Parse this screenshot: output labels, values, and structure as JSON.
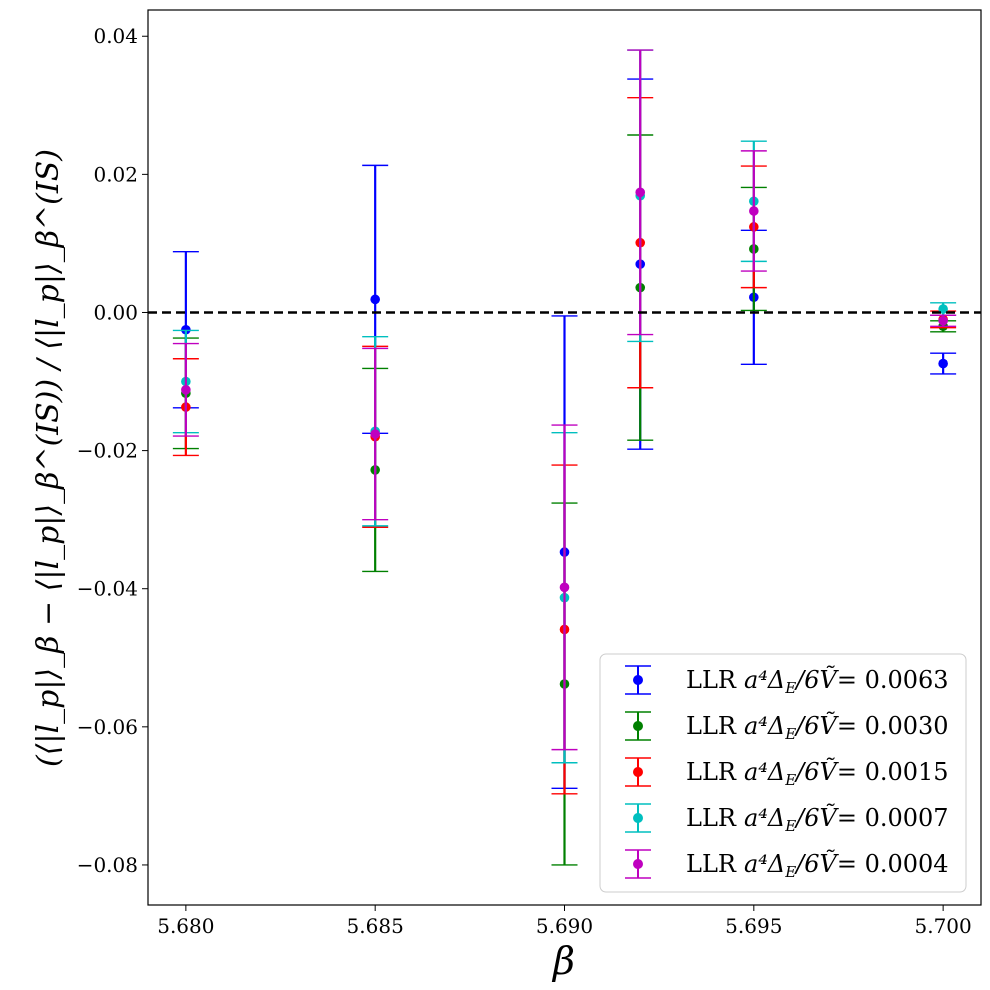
{
  "chart_data": {
    "type": "errorbar",
    "xlabel": "β",
    "ylabel": "(⟨|l_p|⟩_β − ⟨|l_p|⟩_β^(IS)) / ⟨|l_p|⟩_β^(IS)",
    "xlim": [
      5.679,
      5.701
    ],
    "ylim": [
      -0.0858,
      0.0438
    ],
    "xticks": [
      5.68,
      5.685,
      5.69,
      5.695,
      5.7
    ],
    "xtick_labels": [
      "5.680",
      "5.685",
      "5.690",
      "5.695",
      "5.700"
    ],
    "yticks": [
      0.04,
      0.02,
      0.0,
      -0.02,
      -0.04,
      -0.06,
      -0.08
    ],
    "ytick_labels": [
      "0.04",
      "0.02",
      "0.00",
      "−0.02",
      "−0.04",
      "−0.06",
      "−0.08"
    ],
    "reference_line": {
      "y": 0.0,
      "style": "dashed",
      "color": "#000000"
    },
    "legend_position": "lower-right",
    "series": [
      {
        "name": "LLR a⁴Δ_E/6Ṽ= 0.0063",
        "legend_prefix": "LLR",
        "legend_math": "a⁴Δ",
        "legend_sub": "E",
        "legend_frac": "/6Ṽ",
        "legend_value": "= 0.0063",
        "color": "#0000ff",
        "points": [
          {
            "x": 5.68,
            "y": -0.0025,
            "err": 0.0113
          },
          {
            "x": 5.685,
            "y": 0.0019,
            "err": 0.0194
          },
          {
            "x": 5.69,
            "y": -0.0347,
            "err": 0.0342
          },
          {
            "x": 5.692,
            "y": 0.007,
            "err": 0.0268
          },
          {
            "x": 5.695,
            "y": 0.0022,
            "err": 0.0097
          },
          {
            "x": 5.7,
            "y": -0.0074,
            "err": 0.0015
          }
        ]
      },
      {
        "name": "LLR a⁴Δ_E/6Ṽ= 0.0030",
        "legend_prefix": "LLR",
        "legend_math": "a⁴Δ",
        "legend_sub": "E",
        "legend_frac": "/6Ṽ",
        "legend_value": "= 0.0030",
        "color": "#008000",
        "points": [
          {
            "x": 5.68,
            "y": -0.0117,
            "err": 0.008
          },
          {
            "x": 5.685,
            "y": -0.0228,
            "err": 0.0147
          },
          {
            "x": 5.69,
            "y": -0.0538,
            "err": 0.0262
          },
          {
            "x": 5.692,
            "y": 0.0036,
            "err": 0.0221
          },
          {
            "x": 5.695,
            "y": 0.0092,
            "err": 0.0089
          },
          {
            "x": 5.7,
            "y": -0.002,
            "err": 0.0008
          }
        ]
      },
      {
        "name": "LLR a⁴Δ_E/6Ṽ= 0.0015",
        "legend_prefix": "LLR",
        "legend_math": "a⁴Δ",
        "legend_sub": "E",
        "legend_frac": "/6Ṽ",
        "legend_value": "= 0.0015",
        "color": "#ff0000",
        "points": [
          {
            "x": 5.68,
            "y": -0.0137,
            "err": 0.007
          },
          {
            "x": 5.685,
            "y": -0.018,
            "err": 0.0131
          },
          {
            "x": 5.69,
            "y": -0.0459,
            "err": 0.0238
          },
          {
            "x": 5.692,
            "y": 0.0101,
            "err": 0.021
          },
          {
            "x": 5.695,
            "y": 0.0124,
            "err": 0.0088
          },
          {
            "x": 5.7,
            "y": -0.001,
            "err": 0.0012
          }
        ]
      },
      {
        "name": "LLR a⁴Δ_E/6Ṽ= 0.0007",
        "legend_prefix": "LLR",
        "legend_math": "a⁴Δ",
        "legend_sub": "E",
        "legend_frac": "/6Ṽ",
        "legend_value": "= 0.0007",
        "color": "#00bfbf",
        "points": [
          {
            "x": 5.68,
            "y": -0.01,
            "err": 0.0074
          },
          {
            "x": 5.685,
            "y": -0.0172,
            "err": 0.0137
          },
          {
            "x": 5.69,
            "y": -0.0413,
            "err": 0.0239
          },
          {
            "x": 5.692,
            "y": 0.0169,
            "err": 0.0211
          },
          {
            "x": 5.695,
            "y": 0.0161,
            "err": 0.0087
          },
          {
            "x": 5.7,
            "y": 0.0005,
            "err": 0.0009
          }
        ]
      },
      {
        "name": "LLR a⁴Δ_E/6Ṽ= 0.0004",
        "legend_prefix": "LLR",
        "legend_math": "a⁴Δ",
        "legend_sub": "E",
        "legend_frac": "/6Ṽ",
        "legend_value": "= 0.0004",
        "color": "#bf00bf",
        "points": [
          {
            "x": 5.68,
            "y": -0.0112,
            "err": 0.0067
          },
          {
            "x": 5.685,
            "y": -0.0176,
            "err": 0.0124
          },
          {
            "x": 5.69,
            "y": -0.0398,
            "err": 0.0235
          },
          {
            "x": 5.692,
            "y": 0.0174,
            "err": 0.0206
          },
          {
            "x": 5.695,
            "y": 0.0147,
            "err": 0.0087
          },
          {
            "x": 5.7,
            "y": -0.0012,
            "err": 0.0008
          }
        ]
      }
    ]
  }
}
